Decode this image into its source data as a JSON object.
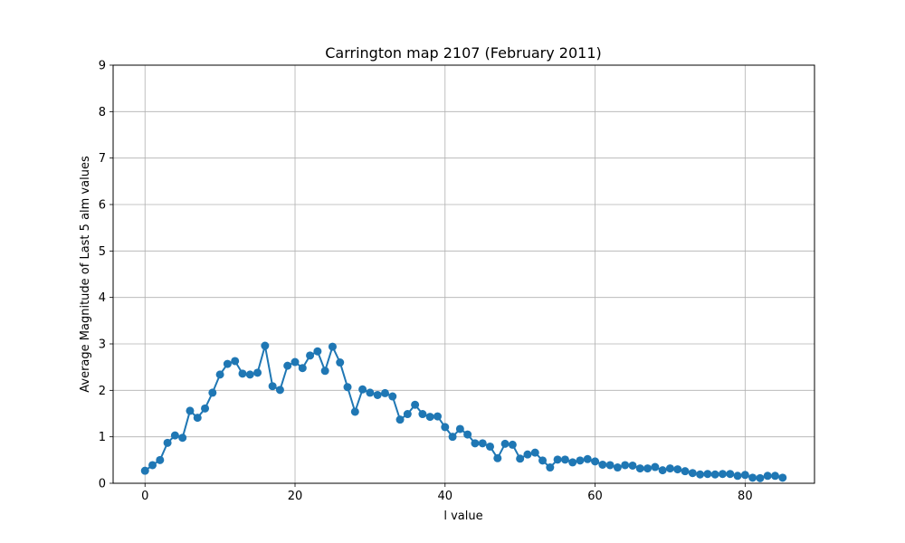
{
  "chart_data": {
    "type": "line",
    "title": "Carrington map 2107 (February 2011)",
    "xlabel": "l value",
    "ylabel": "Average Magnitude of Last 5 alm values",
    "xlim": [
      -4.25,
      89.25
    ],
    "ylim": [
      0,
      9
    ],
    "xticks": [
      0,
      20,
      40,
      60,
      80
    ],
    "yticks": [
      0,
      1,
      2,
      3,
      4,
      5,
      6,
      7,
      8,
      9
    ],
    "grid": true,
    "series": [
      {
        "color": "#1f77b4",
        "marker": "circle",
        "x": [
          0,
          1,
          2,
          3,
          4,
          5,
          6,
          7,
          8,
          9,
          10,
          11,
          12,
          13,
          14,
          15,
          16,
          17,
          18,
          19,
          20,
          21,
          22,
          23,
          24,
          25,
          26,
          27,
          28,
          29,
          30,
          31,
          32,
          33,
          34,
          35,
          36,
          37,
          38,
          39,
          40,
          41,
          42,
          43,
          44,
          45,
          46,
          47,
          48,
          49,
          50,
          51,
          52,
          53,
          54,
          55,
          56,
          57,
          58,
          59,
          60,
          61,
          62,
          63,
          64,
          65,
          66,
          67,
          68,
          69,
          70,
          71,
          72,
          73,
          74,
          75,
          76,
          77,
          78,
          79,
          80,
          81,
          82,
          83,
          84,
          85
        ],
        "y": [
          0.27,
          0.39,
          0.5,
          0.87,
          1.03,
          0.98,
          1.56,
          1.41,
          1.61,
          1.95,
          2.34,
          2.57,
          2.63,
          2.36,
          2.34,
          2.38,
          2.96,
          2.09,
          2.01,
          2.53,
          2.61,
          2.48,
          2.75,
          2.84,
          2.42,
          2.94,
          2.6,
          2.07,
          1.54,
          2.02,
          1.95,
          1.9,
          1.94,
          1.87,
          1.37,
          1.49,
          1.69,
          1.49,
          1.43,
          1.44,
          1.21,
          1.0,
          1.17,
          1.05,
          0.86,
          0.86,
          0.79,
          0.54,
          0.85,
          0.83,
          0.53,
          0.62,
          0.66,
          0.49,
          0.34,
          0.51,
          0.51,
          0.45,
          0.49,
          0.52,
          0.47,
          0.4,
          0.39,
          0.34,
          0.39,
          0.38,
          0.32,
          0.32,
          0.35,
          0.28,
          0.32,
          0.3,
          0.26,
          0.22,
          0.19,
          0.2,
          0.19,
          0.2,
          0.2,
          0.16,
          0.18,
          0.12,
          0.11,
          0.16,
          0.16,
          0.12
        ]
      }
    ]
  }
}
